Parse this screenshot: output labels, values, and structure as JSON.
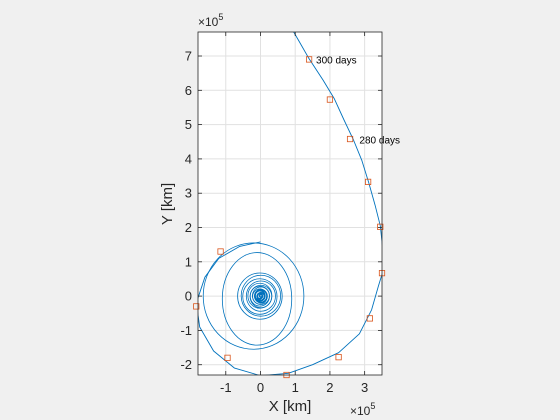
{
  "chart_data": {
    "type": "line",
    "title": "",
    "xlabel": "X [km]",
    "ylabel": "Y [km]",
    "x_exponent": "×10^5",
    "y_exponent": "×10^5",
    "xlim": [
      -180000,
      350000
    ],
    "ylim": [
      -230000,
      770000
    ],
    "x_ticks": [
      -100000,
      0,
      100000,
      200000,
      300000
    ],
    "y_ticks": [
      -200000,
      -100000,
      0,
      100000,
      200000,
      300000,
      400000,
      500000,
      600000,
      700000
    ],
    "x_tick_labels": [
      "-1",
      "0",
      "1",
      "2",
      "3"
    ],
    "y_tick_labels": [
      "-2",
      "-1",
      "0",
      "1",
      "2",
      "3",
      "4",
      "5",
      "6",
      "7"
    ],
    "grid": true,
    "series": [
      {
        "color": "#0072bd",
        "trajectory": [
          [
            0,
            158000
          ],
          [
            -60000,
            145000
          ],
          [
            -120000,
            110000
          ],
          [
            -160000,
            55000
          ],
          [
            -185000,
            -20000
          ],
          [
            -175000,
            -90000
          ],
          [
            -135000,
            -160000
          ],
          [
            -75000,
            -210000
          ],
          [
            0,
            -232000
          ],
          [
            80000,
            -225000
          ],
          [
            150000,
            -200000
          ],
          [
            225000,
            -165000
          ],
          [
            285000,
            -110000
          ],
          [
            320000,
            -40000
          ],
          [
            340000,
            30000
          ],
          [
            352000,
            70000
          ],
          [
            352000,
            140000
          ],
          [
            345000,
            205000
          ],
          [
            330000,
            265000
          ],
          [
            312000,
            330000
          ],
          [
            292000,
            395000
          ],
          [
            268000,
            455000
          ],
          [
            240000,
            515000
          ],
          [
            213000,
            575000
          ],
          [
            180000,
            630000
          ],
          [
            140000,
            692000
          ],
          [
            110000,
            745000
          ],
          [
            90000,
            780000
          ]
        ]
      }
    ],
    "markers": {
      "color": "#d95319",
      "points": [
        [
          -115000,
          130000
        ],
        [
          -185000,
          -30000
        ],
        [
          -95000,
          -180000
        ],
        [
          75000,
          -230000
        ],
        [
          225000,
          -178000
        ],
        [
          315000,
          -65000
        ],
        [
          350000,
          67000
        ],
        [
          345000,
          202000
        ],
        [
          310000,
          333000
        ],
        [
          258000,
          458000
        ],
        [
          200000,
          573000
        ],
        [
          140000,
          690000
        ]
      ]
    },
    "annotations": [
      {
        "text": "300 days",
        "x": 160000,
        "y": 690000
      },
      {
        "text": "280 days",
        "x": 285000,
        "y": 456000
      }
    ]
  }
}
